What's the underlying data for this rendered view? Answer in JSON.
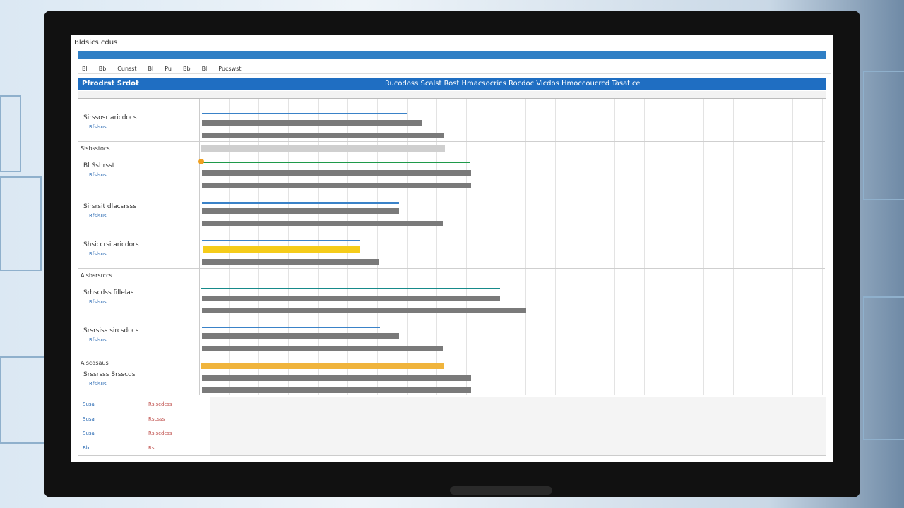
{
  "window": {
    "title": "Bldsics cdus"
  },
  "toolbar": [
    "Bl",
    "Bb",
    "Cunsst",
    "Bl",
    "Pu",
    "Bb",
    "Bl",
    "Pucswst"
  ],
  "header": {
    "left": "Pfrodrst Srdot",
    "title": "Rucodoss Scalst Rost  Hmacsocrics Rocdoc Vicdos Hmoccoucrcd Tasatice"
  },
  "rows": [
    {
      "label": "Sirssosr aricdocs",
      "sub": "Rfslsus"
    },
    {
      "section": "Sisbsstocs"
    },
    {
      "label": "Bl Sshrsst",
      "sub": "Rfslsus"
    },
    {
      "label": "Sirsrsit dlacsrsss",
      "sub": "Rfslsus"
    },
    {
      "label": "Shsiccrsi aricdors",
      "sub": "Rfslsus"
    },
    {
      "section": "Aisbsrsrccs"
    },
    {
      "label": "Srhscdss fillelas",
      "sub": "Rfslsus"
    },
    {
      "label": "Srsrsiss sircsdocs",
      "sub": "Rfslsus"
    },
    {
      "section": "Alscdsaus"
    },
    {
      "label": "Srssrsss Srsscds",
      "sub": "Rfslsus"
    }
  ],
  "footer": [
    "Susa",
    "Rsiscdcss",
    "Susa",
    "Rscsss",
    "Susa",
    "Rsiscdcss",
    "Bb",
    "Rs"
  ]
}
